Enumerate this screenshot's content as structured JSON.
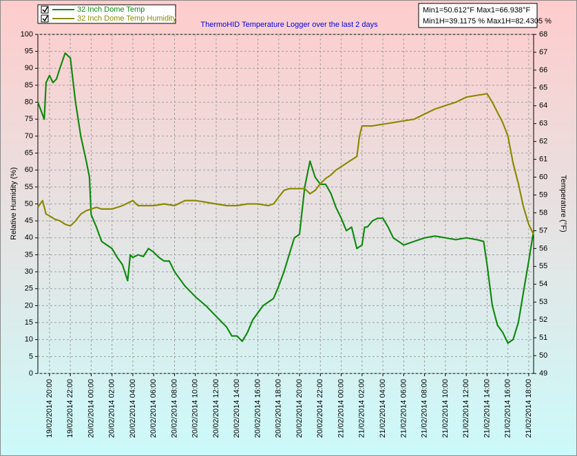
{
  "chart_data": {
    "type": "line",
    "title": "ThermoHID Temperature Logger over the last 2 days",
    "ylabel": "Relative Humidity (%)",
    "y2label": "Temperature (°F)",
    "annotations": [
      "Min1=50.612°F Max1=66.938°F",
      "Min1H=39.1175 % Max1H=82.4305 %"
    ],
    "grid": true,
    "legend": "top-left",
    "xlim": [
      "19/02/2014 18:53",
      "21/02/2014 18:28"
    ],
    "xticks": [
      "19/02/2014 20:00",
      "19/02/2014 22:00",
      "20/02/2014 00:00",
      "20/02/2014 02:00",
      "20/02/2014 04:00",
      "20/02/2014 06:00",
      "20/02/2014 08:00",
      "20/02/2014 10:00",
      "20/02/2014 12:00",
      "20/02/2014 14:00",
      "20/02/2014 16:00",
      "20/02/2014 18:00",
      "20/02/2014 20:00",
      "20/02/2014 22:00",
      "21/02/2014 00:00",
      "21/02/2014 02:00",
      "21/02/2014 04:00",
      "21/02/2014 06:00",
      "21/02/2014 08:00",
      "21/02/2014 10:00",
      "21/02/2014 12:00",
      "21/02/2014 14:00",
      "21/02/2014 16:00",
      "21/02/2014 18:00"
    ],
    "ylim": [
      0,
      100
    ],
    "yticks": [
      0,
      5,
      10,
      15,
      20,
      25,
      30,
      35,
      40,
      45,
      50,
      55,
      60,
      65,
      70,
      75,
      80,
      85,
      90,
      95,
      100
    ],
    "y2lim": [
      49,
      68
    ],
    "y2ticks": [
      49,
      50,
      51,
      52,
      53,
      54,
      55,
      56,
      57,
      58,
      59,
      60,
      61,
      62,
      63,
      64,
      65,
      66,
      67,
      68
    ],
    "series": [
      {
        "name": "32 Inch Dome Temp",
        "color": "#108a10",
        "axis": "y2",
        "x": [
          "19/02/2014 18:53",
          "19/02/2014 19:30",
          "19/02/2014 19:40",
          "19/02/2014 20:00",
          "19/02/2014 20:20",
          "19/02/2014 20:40",
          "19/02/2014 21:00",
          "19/02/2014 21:30",
          "19/02/2014 22:00",
          "19/02/2014 22:30",
          "19/02/2014 23:00",
          "19/02/2014 23:30",
          "19/02/2014 23:50",
          "20/02/2014 00:00",
          "20/02/2014 00:30",
          "20/02/2014 01:00",
          "20/02/2014 01:30",
          "20/02/2014 02:00",
          "20/02/2014 02:30",
          "20/02/2014 03:00",
          "20/02/2014 03:30",
          "20/02/2014 03:45",
          "20/02/2014 04:00",
          "20/02/2014 04:30",
          "20/02/2014 05:00",
          "20/02/2014 05:30",
          "20/02/2014 06:00",
          "20/02/2014 06:30",
          "20/02/2014 07:00",
          "20/02/2014 07:30",
          "20/02/2014 08:00",
          "20/02/2014 09:00",
          "20/02/2014 10:00",
          "20/02/2014 11:00",
          "20/02/2014 12:00",
          "20/02/2014 13:00",
          "20/02/2014 13:30",
          "20/02/2014 14:00",
          "20/02/2014 14:30",
          "20/02/2014 15:00",
          "20/02/2014 15:30",
          "20/02/2014 16:00",
          "20/02/2014 16:30",
          "20/02/2014 17:00",
          "20/02/2014 17:30",
          "20/02/2014 18:00",
          "20/02/2014 18:30",
          "20/02/2014 19:00",
          "20/02/2014 19:30",
          "20/02/2014 20:00",
          "20/02/2014 20:30",
          "20/02/2014 21:00",
          "20/02/2014 21:30",
          "20/02/2014 22:00",
          "20/02/2014 22:30",
          "20/02/2014 23:00",
          "20/02/2014 23:30",
          "21/02/2014 00:00",
          "21/02/2014 00:30",
          "21/02/2014 01:00",
          "21/02/2014 01:30",
          "21/02/2014 02:00",
          "21/02/2014 02:15",
          "21/02/2014 02:30",
          "21/02/2014 03:00",
          "21/02/2014 03:30",
          "21/02/2014 04:00",
          "21/02/2014 04:30",
          "21/02/2014 05:00",
          "21/02/2014 05:30",
          "21/02/2014 06:00",
          "21/02/2014 07:00",
          "21/02/2014 08:00",
          "21/02/2014 09:00",
          "21/02/2014 10:00",
          "21/02/2014 11:00",
          "21/02/2014 12:00",
          "21/02/2014 13:00",
          "21/02/2014 13:40",
          "21/02/2014 14:00",
          "21/02/2014 14:30",
          "21/02/2014 15:00",
          "21/02/2014 15:30",
          "21/02/2014 16:00",
          "21/02/2014 16:30",
          "21/02/2014 17:00",
          "21/02/2014 17:30",
          "21/02/2014 18:00",
          "21/02/2014 18:28"
        ],
        "values": [
          64.2,
          63.25,
          65.3,
          65.7,
          65.3,
          65.5,
          66.1,
          66.95,
          66.67,
          64.2,
          62.3,
          60.97,
          60.0,
          57.9,
          57.2,
          56.4,
          56.2,
          56.0,
          55.5,
          55.1,
          54.2,
          55.65,
          55.5,
          55.65,
          55.55,
          56.0,
          55.8,
          55.5,
          55.3,
          55.3,
          54.7,
          53.9,
          53.3,
          52.8,
          52.2,
          51.6,
          51.1,
          51.1,
          50.8,
          51.3,
          52.0,
          52.4,
          52.8,
          53.0,
          53.2,
          53.9,
          54.7,
          55.65,
          56.6,
          56.8,
          59.45,
          60.9,
          60.0,
          59.6,
          59.6,
          59.1,
          58.3,
          57.7,
          57.0,
          57.2,
          56.0,
          56.2,
          57.2,
          57.2,
          57.55,
          57.7,
          57.7,
          57.2,
          56.6,
          56.4,
          56.2,
          56.4,
          56.6,
          56.7,
          56.6,
          56.5,
          56.6,
          56.5,
          56.4,
          55.1,
          52.8,
          51.7,
          51.3,
          50.7,
          50.9,
          51.85,
          53.6,
          55.3,
          57.0
        ]
      },
      {
        "name": "32 Inch Dome Temp Humidity",
        "color": "#8a8a00",
        "axis": "y",
        "x": [
          "19/02/2014 18:53",
          "19/02/2014 19:20",
          "19/02/2014 19:40",
          "19/02/2014 20:00",
          "19/02/2014 20:30",
          "19/02/2014 21:00",
          "19/02/2014 21:30",
          "19/02/2014 22:00",
          "19/02/2014 22:30",
          "19/02/2014 23:00",
          "19/02/2014 23:30",
          "20/02/2014 00:00",
          "20/02/2014 00:30",
          "20/02/2014 01:00",
          "20/02/2014 02:00",
          "20/02/2014 03:00",
          "20/02/2014 04:00",
          "20/02/2014 04:30",
          "20/02/2014 05:00",
          "20/02/2014 06:00",
          "20/02/2014 07:00",
          "20/02/2014 08:00",
          "20/02/2014 09:00",
          "20/02/2014 10:00",
          "20/02/2014 11:00",
          "20/02/2014 12:00",
          "20/02/2014 13:00",
          "20/02/2014 14:00",
          "20/02/2014 15:00",
          "20/02/2014 16:00",
          "20/02/2014 17:00",
          "20/02/2014 17:30",
          "20/02/2014 18:00",
          "20/02/2014 18:30",
          "20/02/2014 19:00",
          "20/02/2014 20:00",
          "20/02/2014 20:30",
          "20/02/2014 21:00",
          "20/02/2014 21:30",
          "20/02/2014 22:00",
          "20/02/2014 22:30",
          "20/02/2014 23:00",
          "20/02/2014 23:30",
          "21/02/2014 00:00",
          "21/02/2014 00:30",
          "21/02/2014 01:00",
          "21/02/2014 01:30",
          "21/02/2014 01:45",
          "21/02/2014 02:00",
          "21/02/2014 03:00",
          "21/02/2014 04:00",
          "21/02/2014 05:00",
          "21/02/2014 06:00",
          "21/02/2014 07:00",
          "21/02/2014 08:00",
          "21/02/2014 09:00",
          "21/02/2014 10:00",
          "21/02/2014 11:00",
          "21/02/2014 12:00",
          "21/02/2014 13:00",
          "21/02/2014 14:00",
          "21/02/2014 14:30",
          "21/02/2014 15:00",
          "21/02/2014 15:30",
          "21/02/2014 16:00",
          "21/02/2014 16:30",
          "21/02/2014 17:00",
          "21/02/2014 17:30",
          "21/02/2014 18:00",
          "21/02/2014 18:28"
        ],
        "values": [
          49,
          51,
          47,
          46.5,
          45.5,
          45,
          44,
          43.5,
          45,
          47,
          48,
          48.5,
          49,
          48.5,
          48.5,
          49.5,
          51,
          49.5,
          49.5,
          49.5,
          50,
          49.5,
          51,
          51,
          50.5,
          50,
          49.5,
          49.5,
          50,
          50,
          49.5,
          50,
          52,
          54,
          54.5,
          54.5,
          54.5,
          53,
          54,
          56,
          57.5,
          58.5,
          60,
          61,
          62,
          63,
          64,
          70,
          73,
          73,
          73.5,
          74,
          74.5,
          75,
          76.5,
          78,
          79,
          80,
          81.5,
          82,
          82.5,
          80,
          77,
          74,
          70,
          62,
          56,
          49,
          44,
          41
        ]
      }
    ]
  }
}
